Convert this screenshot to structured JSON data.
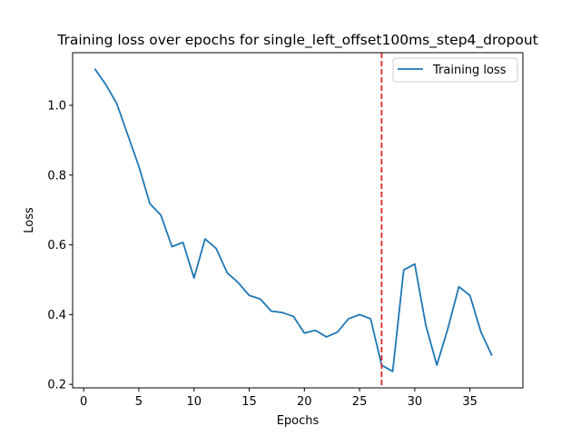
{
  "chart_data": {
    "type": "line",
    "title": "Training loss over epochs for single_left_offset100ms_step4_dropout",
    "xlabel": "Epochs",
    "ylabel": "Loss",
    "xlim": [
      -1.0,
      39.8
    ],
    "ylim": [
      0.19,
      1.151
    ],
    "xticks": [
      0,
      5,
      10,
      15,
      20,
      25,
      30,
      35
    ],
    "xtick_labels": [
      "0",
      "5",
      "10",
      "15",
      "20",
      "25",
      "30",
      "35"
    ],
    "yticks": [
      0.2,
      0.4,
      0.6,
      0.8,
      1.0
    ],
    "ytick_labels": [
      "0.2",
      "0.4",
      "0.6",
      "0.8",
      "1.0"
    ],
    "grid": false,
    "legend_position": "top-right",
    "series": [
      {
        "name": "Training loss",
        "color": "#1f77b4",
        "x": [
          1,
          2,
          3,
          4,
          5,
          6,
          7,
          8,
          9,
          10,
          11,
          12,
          13,
          14,
          15,
          16,
          17,
          18,
          19,
          20,
          21,
          22,
          23,
          24,
          25,
          26,
          27,
          28,
          29,
          30,
          31,
          32,
          33,
          34,
          35,
          36,
          37
        ],
        "values": [
          1.105,
          1.06,
          1.005,
          0.915,
          0.825,
          0.718,
          0.685,
          0.595,
          0.607,
          0.505,
          0.617,
          0.59,
          0.52,
          0.492,
          0.455,
          0.445,
          0.41,
          0.406,
          0.395,
          0.347,
          0.355,
          0.336,
          0.35,
          0.388,
          0.4,
          0.388,
          0.255,
          0.237,
          0.528,
          0.545,
          0.37,
          0.255,
          0.36,
          0.48,
          0.455,
          0.35,
          0.282
        ]
      }
    ],
    "annotations": [
      {
        "kind": "vertical-line",
        "x": 27,
        "color": "#d62728",
        "style": "dashed"
      }
    ]
  }
}
